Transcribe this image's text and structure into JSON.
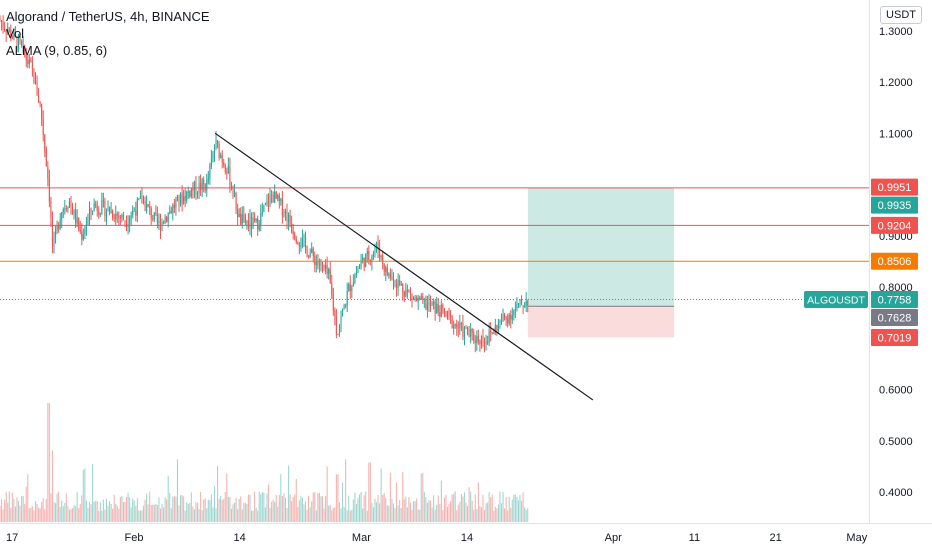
{
  "header": {
    "title": "Algorand / TetherUS, 4h, BINANCE",
    "vol_label": "Vol",
    "indicator": "ALMA (9, 0.85, 6)"
  },
  "scale_button": "USDT",
  "colors": {
    "up": "#26a69a",
    "down": "#ef5350",
    "trendline": "#131722",
    "red_line": "#ef5350",
    "orange_line": "#f57c00",
    "target_zone": "#cde9e4",
    "stop_zone": "#fbdcdc",
    "axis_text": "#131722"
  },
  "chart_data": {
    "type": "candlestick",
    "symbol": "ALGOUSDT",
    "y_ticks": [
      "1.3000",
      "1.2000",
      "1.1000",
      "0.9000",
      "0.8000",
      "0.6000",
      "0.5000",
      "0.4000"
    ],
    "y_tick_values": [
      1.3,
      1.2,
      1.1,
      0.9,
      0.8,
      0.6,
      0.5,
      0.4
    ],
    "x_ticks": [
      "17",
      "Feb",
      "14",
      "Mar",
      "14",
      "Apr",
      "11",
      "21",
      "May"
    ],
    "x_tick_days": [
      17,
      32,
      45,
      60,
      73,
      91,
      101,
      111,
      121
    ],
    "y_range": [
      0.34,
      1.36
    ],
    "x_range_days": [
      15.5,
      122.5
    ],
    "price_badges": [
      {
        "value": "0.9951",
        "color": "#ef5350"
      },
      {
        "value": "0.9935",
        "color": "#26a69a"
      },
      {
        "value": "0.9204",
        "color": "#ef5350"
      },
      {
        "value": "0.8506",
        "color": "#f57c00"
      },
      {
        "value": "0.7758",
        "color": "#26a69a"
      },
      {
        "value": "0.7628",
        "color": "#787b86"
      },
      {
        "value": "0.7019",
        "color": "#ef5350"
      }
    ],
    "horizontal_lines": [
      {
        "price": 0.9935,
        "color": "#ef5350"
      },
      {
        "price": 0.9204,
        "color": "#ef5350"
      },
      {
        "price": 0.8506,
        "color": "#f57c00"
      }
    ],
    "last_price": 0.7758,
    "trendline": {
      "from": {
        "day": 42,
        "price": 1.1
      },
      "to": {
        "day": 88.5,
        "price": 0.58
      }
    },
    "position": {
      "start_day": 80.5,
      "end_day": 98.5,
      "entry": 0.7628,
      "target": 0.9935,
      "stop": 0.7019
    },
    "price_path": [
      {
        "day": 15.5,
        "price": 1.32
      },
      {
        "day": 18,
        "price": 1.27
      },
      {
        "day": 19.5,
        "price": 1.22
      },
      {
        "day": 20.5,
        "price": 1.15
      },
      {
        "day": 21.5,
        "price": 1.0
      },
      {
        "day": 22,
        "price": 0.87
      },
      {
        "day": 23,
        "price": 0.95
      },
      {
        "day": 24,
        "price": 0.97
      },
      {
        "day": 25.5,
        "price": 0.9
      },
      {
        "day": 27,
        "price": 0.96
      },
      {
        "day": 29,
        "price": 0.95
      },
      {
        "day": 31,
        "price": 0.93
      },
      {
        "day": 33,
        "price": 0.97
      },
      {
        "day": 35,
        "price": 0.92
      },
      {
        "day": 37,
        "price": 0.96
      },
      {
        "day": 39,
        "price": 0.99
      },
      {
        "day": 41,
        "price": 1.0
      },
      {
        "day": 42,
        "price": 1.08
      },
      {
        "day": 43.5,
        "price": 1.03
      },
      {
        "day": 45,
        "price": 0.93
      },
      {
        "day": 47,
        "price": 0.92
      },
      {
        "day": 49,
        "price": 0.98
      },
      {
        "day": 50.5,
        "price": 0.95
      },
      {
        "day": 52,
        "price": 0.9
      },
      {
        "day": 54,
        "price": 0.86
      },
      {
        "day": 56,
        "price": 0.82
      },
      {
        "day": 57,
        "price": 0.71
      },
      {
        "day": 58.5,
        "price": 0.8
      },
      {
        "day": 60,
        "price": 0.85
      },
      {
        "day": 61,
        "price": 0.86
      },
      {
        "day": 62,
        "price": 0.88
      },
      {
        "day": 63,
        "price": 0.83
      },
      {
        "day": 65,
        "price": 0.8
      },
      {
        "day": 67,
        "price": 0.77
      },
      {
        "day": 69,
        "price": 0.76
      },
      {
        "day": 70,
        "price": 0.75
      },
      {
        "day": 72,
        "price": 0.72
      },
      {
        "day": 74,
        "price": 0.7
      },
      {
        "day": 75.5,
        "price": 0.7
      },
      {
        "day": 77,
        "price": 0.73
      },
      {
        "day": 78.5,
        "price": 0.75
      },
      {
        "day": 80.5,
        "price": 0.7758
      }
    ],
    "volume_spikes": [
      {
        "day": 21.5,
        "level": 1.0
      },
      {
        "day": 22,
        "level": 0.6
      },
      {
        "day": 26,
        "level": 0.45
      },
      {
        "day": 57,
        "level": 0.4
      },
      {
        "day": 61,
        "level": 0.5
      },
      {
        "day": 62.5,
        "level": 0.45
      }
    ]
  }
}
